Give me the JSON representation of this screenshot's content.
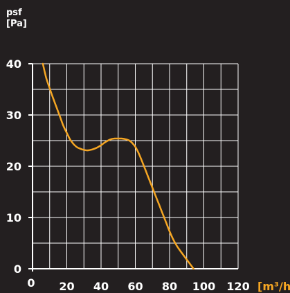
{
  "chart_data": {
    "type": "line",
    "ylabel_line1": "psf",
    "ylabel_line2": "[Pa]",
    "xlabel": "[m³/h]",
    "xlim": [
      0,
      120
    ],
    "ylim": [
      0,
      40
    ],
    "x_ticks": [
      0,
      20,
      40,
      60,
      80,
      100,
      120
    ],
    "y_ticks": [
      0,
      10,
      20,
      30,
      40
    ],
    "grid": true,
    "series": [
      {
        "color": "#f5a623",
        "x": [
          6,
          7,
          8,
          10,
          12,
          14,
          16,
          18,
          20,
          22,
          24,
          26,
          28,
          30,
          32,
          34,
          36,
          38,
          40,
          42,
          44,
          46,
          48,
          50,
          52,
          54,
          56,
          58,
          60,
          62,
          64,
          66,
          68,
          70,
          72,
          74,
          76,
          78,
          80,
          82,
          84,
          86,
          88,
          90,
          92,
          94
        ],
        "y": [
          40,
          38.6,
          37.2,
          35.2,
          33.3,
          31.5,
          29.7,
          27.9,
          26.5,
          25.2,
          24.3,
          23.7,
          23.4,
          23.2,
          23.1,
          23.2,
          23.4,
          23.7,
          24.1,
          24.6,
          25.0,
          25.3,
          25.4,
          25.4,
          25.4,
          25.3,
          25.1,
          24.6,
          23.8,
          22.5,
          20.9,
          19.2,
          17.5,
          15.8,
          14.1,
          12.4,
          10.7,
          9.0,
          7.3,
          5.8,
          4.6,
          3.6,
          2.7,
          1.8,
          0.9,
          0
        ]
      }
    ]
  },
  "colors": {
    "background": "#231f20",
    "grid": "#ffffff",
    "text": "#ffffff",
    "curve": "#f5a623"
  }
}
